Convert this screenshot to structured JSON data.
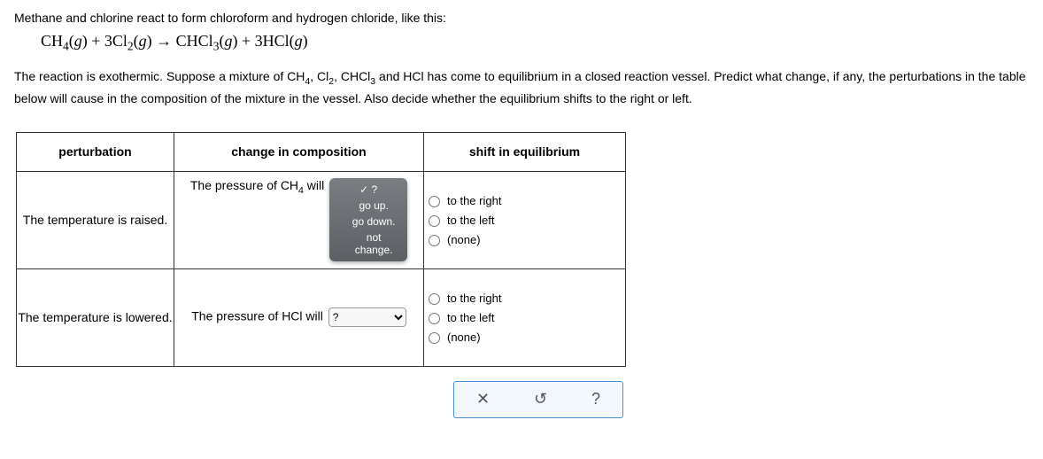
{
  "intro_text": "Methane and chlorine react to form chloroform and hydrogen chloride, like this:",
  "equation_html": "CH<sub>4</sub>(<i>g</i>) + 3Cl<sub>2</sub>(<i>g</i>) → CHCl<sub>3</sub>(<i>g</i>) + 3HCl(<i>g</i>)",
  "desc_html": "The reaction is exothermic. Suppose a mixture of CH<sub>4</sub>, Cl<sub>2</sub>, CHCl<sub>3</sub> and HCl has come to equilibrium in a closed reaction vessel. Predict what change, if any, the perturbations in the table below will cause in the composition of the mixture in the vessel. Also decide whether the equilibrium shifts to the right or left.",
  "headers": {
    "perturbation": "perturbation",
    "change": "change in composition",
    "shift": "shift in equilibrium"
  },
  "radio_options": {
    "right": "to the right",
    "left": "to the left",
    "none": "(none)"
  },
  "dropdown_options": {
    "placeholder": "?",
    "up": "go up.",
    "down": "go down.",
    "same": "not change."
  },
  "rows": [
    {
      "perturbation": "The temperature is raised.",
      "change_prefix_html": "The pressure of CH<sub>4</sub> will",
      "dropdown_state": "open"
    },
    {
      "perturbation": "The temperature is lowered.",
      "change_prefix_html": "The pressure of HCl will",
      "dropdown_state": "closed"
    }
  ],
  "footer_icons": {
    "clear": "✕",
    "reset": "↻",
    "help": "?"
  },
  "colors": {
    "border": "#333333",
    "dropdown_bg_top": "#7a7d81",
    "dropdown_bg_bottom": "#5c5f63",
    "footer_border": "#4a90d9",
    "footer_bg": "#f2f8fe"
  }
}
